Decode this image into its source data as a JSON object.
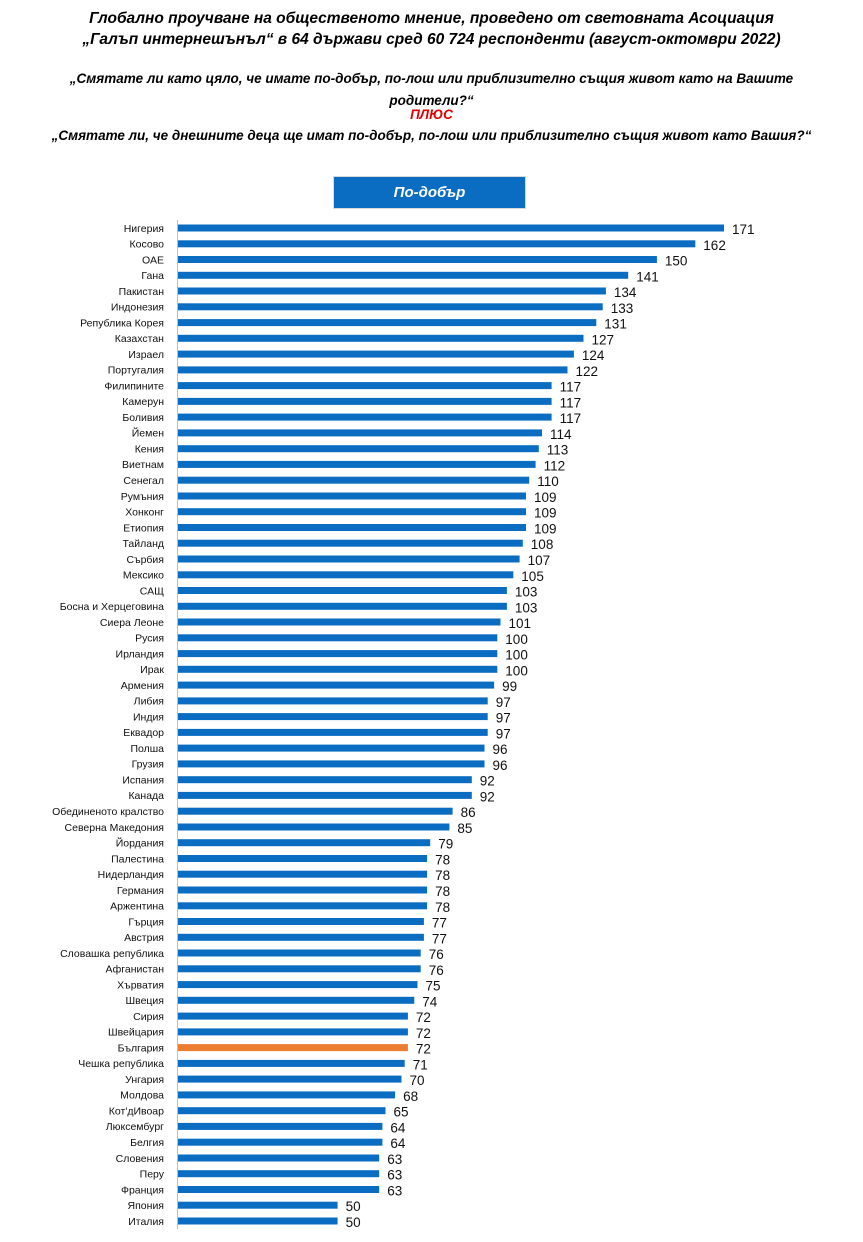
{
  "header": {
    "title_line1": "Глобално проучване на общественото мнение, проведено от световната Асоциация",
    "title_line2": "„Галъп интернешънъл“ в 64 държави сред 60 724 респонденти (август-октомври 2022)",
    "question1": "„Смятате ли като цяло, че имате по-добър, по-лош или приблизително същия живот като на Вашите родители?“",
    "plus_label": "ПЛЮС",
    "question2": "„Смятате ли, че днешните деца ще имат по-добър, по-лош или приблизително същия живот като Вашия?“"
  },
  "colors": {
    "bar": "#0a6dc2",
    "highlight": "#ed7d31",
    "legend_bg": "#0a6dc2",
    "plus_text": "#e00000",
    "axis": "#bfbfbf"
  },
  "chart_data": {
    "type": "bar",
    "orientation": "horizontal",
    "title": "",
    "legend": [
      {
        "name": "По-добър",
        "position": "top-center"
      }
    ],
    "series": [
      {
        "name": "По-добър"
      }
    ],
    "xlabel": "",
    "ylabel": "",
    "xlim": [
      0,
      171
    ],
    "grid": false,
    "highlight_category": "България",
    "categories": [
      "Нигерия",
      "Косово",
      "ОАЕ",
      "Гана",
      "Пакистан",
      "Индонезия",
      "Република Корея",
      "Казахстан",
      "Израел",
      "Португалия",
      "Филипините",
      "Камерун",
      "Боливия",
      "Йемен",
      "Кения",
      "Виетнам",
      "Сенегал",
      "Румъния",
      "Хонконг",
      "Етиопия",
      "Тайланд",
      "Сърбия",
      "Мексико",
      "САЩ",
      "Босна и Херцеговина",
      "Сиера Леоне",
      "Русия",
      "Ирландия",
      "Ирак",
      "Армения",
      "Либия",
      "Индия",
      "Еквадор",
      "Полша",
      "Грузия",
      "Испания",
      "Канада",
      "Обединеното кралство",
      "Северна Македония",
      "Йордания",
      "Палестина",
      "Нидерландия",
      "Германия",
      "Аржентина",
      "Гърция",
      "Австрия",
      "Словашка република",
      "Афганистан",
      "Хърватия",
      "Швеция",
      "Сирия",
      "Швейцария",
      "България",
      "Чешка република",
      "Унгария",
      "Молдова",
      "Кот'дИвоар",
      "Люксембург",
      "Белгия",
      "Словения",
      "Перу",
      "Франция",
      "Япония",
      "Италия"
    ],
    "values": [
      171,
      162,
      150,
      141,
      134,
      133,
      131,
      127,
      124,
      122,
      117,
      117,
      117,
      114,
      113,
      112,
      110,
      109,
      109,
      109,
      108,
      107,
      105,
      103,
      103,
      101,
      100,
      100,
      100,
      99,
      97,
      97,
      97,
      96,
      96,
      92,
      92,
      86,
      85,
      79,
      78,
      78,
      78,
      78,
      77,
      77,
      76,
      76,
      75,
      74,
      72,
      72,
      72,
      71,
      70,
      68,
      65,
      64,
      64,
      63,
      63,
      63,
      50,
      50
    ]
  }
}
